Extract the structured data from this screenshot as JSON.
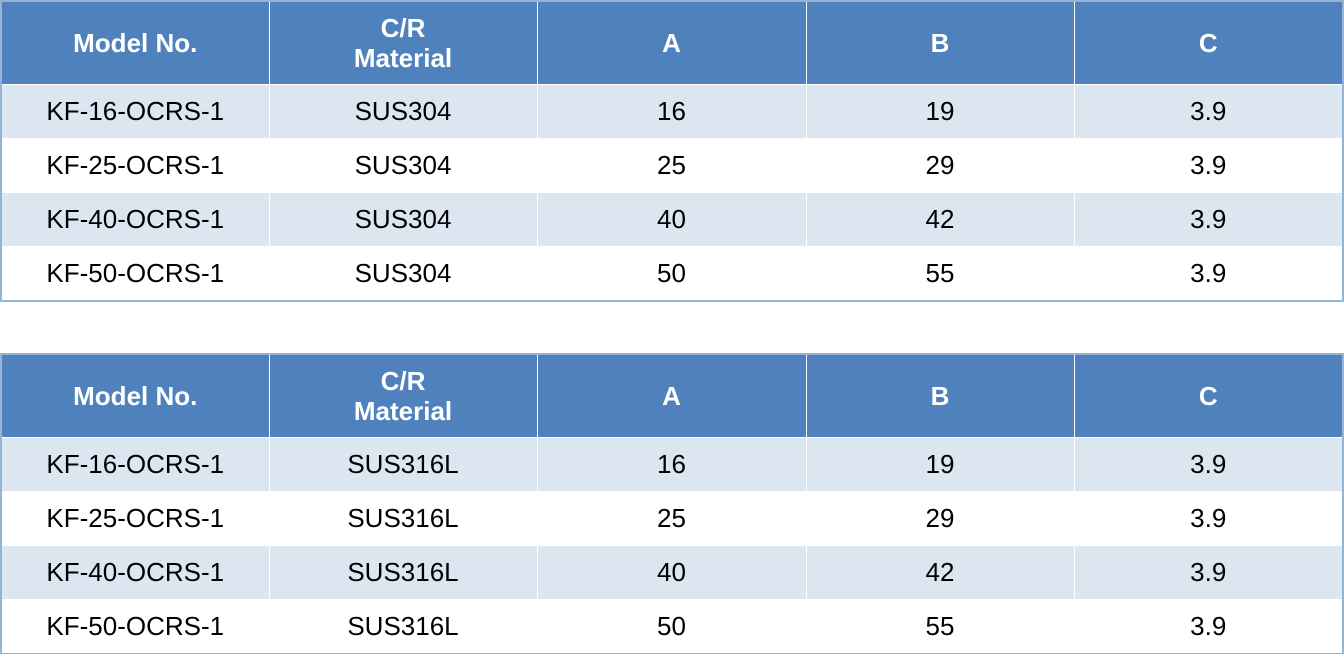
{
  "tables": [
    {
      "header": [
        "Model No.",
        "C/R Material",
        "A",
        "B",
        "C"
      ],
      "rows": [
        [
          "KF-16-OCRS-1",
          "SUS304",
          16,
          19,
          3.9
        ],
        [
          "KF-25-OCRS-1",
          "SUS304",
          25,
          29,
          3.9
        ],
        [
          "KF-40-OCRS-1",
          "SUS304",
          40,
          42,
          3.9
        ],
        [
          "KF-50-OCRS-1",
          "SUS304",
          50,
          55,
          3.9
        ]
      ]
    },
    {
      "header": [
        "Model No.",
        "C/R Material",
        "A",
        "B",
        "C"
      ],
      "rows": [
        [
          "KF-16-OCRS-1",
          "SUS316L",
          16,
          19,
          3.9
        ],
        [
          "KF-25-OCRS-1",
          "SUS316L",
          25,
          29,
          3.9
        ],
        [
          "KF-40-OCRS-1",
          "SUS316L",
          40,
          42,
          3.9
        ],
        [
          "KF-50-OCRS-1",
          "SUS316L",
          50,
          55,
          3.9
        ]
      ]
    }
  ]
}
